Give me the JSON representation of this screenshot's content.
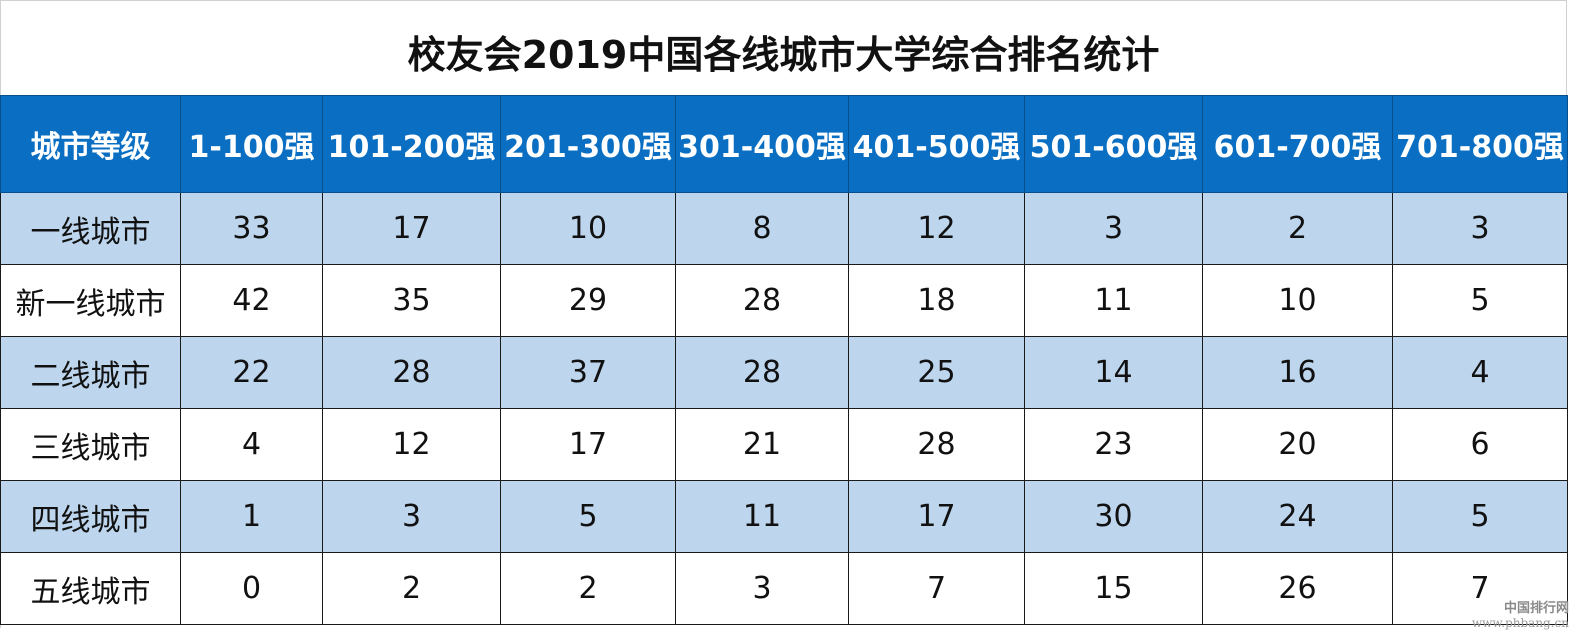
{
  "title": "校友会2019中国各线城市大学综合排名统计",
  "watermark": {
    "line1": "中国排行网",
    "line2": "www.phbang.cn"
  },
  "colors": {
    "header_bg": "#0a6fc2",
    "header_text": "#ffffff",
    "row_shade": "#bdd6ee",
    "row_plain": "#ffffff"
  },
  "chart_data": {
    "type": "table",
    "title": "校友会2019中国各线城市大学综合排名统计",
    "columns": [
      "城市等级",
      "1-100强",
      "101-200强",
      "201-300强",
      "301-400强",
      "401-500强",
      "501-600强",
      "601-700强",
      "701-800强"
    ],
    "rows": [
      {
        "label": "一线城市",
        "values": [
          33,
          17,
          10,
          8,
          12,
          3,
          2,
          3
        ]
      },
      {
        "label": "新一线城市",
        "values": [
          42,
          35,
          29,
          28,
          18,
          11,
          10,
          5
        ]
      },
      {
        "label": "二线城市",
        "values": [
          22,
          28,
          37,
          28,
          25,
          14,
          16,
          4
        ]
      },
      {
        "label": "三线城市",
        "values": [
          4,
          12,
          17,
          21,
          28,
          23,
          20,
          6
        ]
      },
      {
        "label": "四线城市",
        "values": [
          1,
          3,
          5,
          11,
          17,
          30,
          24,
          5
        ]
      },
      {
        "label": "五线城市",
        "values": [
          0,
          2,
          2,
          3,
          7,
          15,
          26,
          7
        ]
      }
    ]
  }
}
